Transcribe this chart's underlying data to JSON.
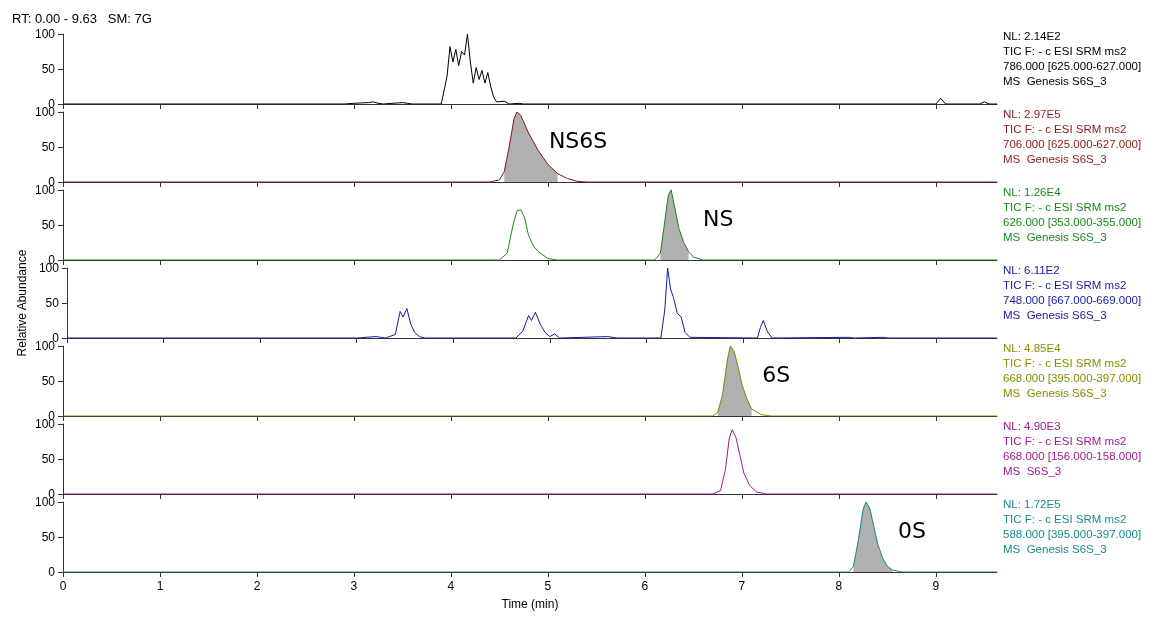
{
  "chart_data": [
    {
      "type": "line",
      "title": "RT: 0.00 - 9.63   SM: 7G",
      "xlim": [
        0,
        9.63
      ],
      "xticks": [
        0,
        1,
        2,
        3,
        4,
        5,
        6,
        7,
        8,
        9
      ],
      "ylim": [
        0,
        100
      ],
      "yticks": [
        0,
        50,
        100
      ],
      "tick_labels": "y",
      "grid": false,
      "annotations": [
        "NL: 2.14E2",
        "TIC F: - c ESI SRM ms2",
        "786.000 [625.000-627.000]",
        "MS  Genesis S6S_3"
      ],
      "series": [
        {
          "color": "#000000",
          "x": [
            0,
            2.9,
            3.0,
            3.15,
            3.2,
            3.25,
            3.3,
            3.5,
            3.55,
            3.6,
            3.9,
            3.96,
            3.99,
            4.02,
            4.05,
            4.08,
            4.11,
            4.14,
            4.17,
            4.2,
            4.23,
            4.26,
            4.29,
            4.32,
            4.35,
            4.38,
            4.41,
            4.44,
            4.47,
            4.55,
            4.6,
            4.7,
            4.75,
            9.0,
            9.05,
            9.1,
            9.45,
            9.5,
            9.55,
            9.63
          ],
          "values": [
            0,
            0,
            1,
            2,
            3,
            1,
            0,
            2,
            1,
            0,
            0,
            40,
            82,
            60,
            78,
            55,
            75,
            70,
            100,
            60,
            30,
            52,
            35,
            48,
            30,
            45,
            25,
            10,
            3,
            4,
            0,
            1,
            0,
            0,
            8,
            0,
            0,
            3,
            0,
            0
          ]
        }
      ]
    },
    {
      "type": "line",
      "xlim": [
        0,
        9.63
      ],
      "xticks": [
        0,
        1,
        2,
        3,
        4,
        5,
        6,
        7,
        8,
        9
      ],
      "ylim": [
        0,
        100
      ],
      "yticks": [
        0,
        50,
        100
      ],
      "tick_labels": "y",
      "grid": false,
      "annotations": [
        "NL: 2.97E5",
        "TIC F: - c ESI SRM ms2",
        "706.000 [625.000-627.000]",
        "MS  Genesis S6S_3",
        {
          "text": "NS6S",
          "x": 4.68,
          "y": 100
        }
      ],
      "series": [
        {
          "type": "area",
          "color": "#b0b0b0",
          "x": [
            4.55,
            4.6,
            4.65,
            4.68,
            4.72,
            4.8,
            4.9,
            5.0,
            5.1
          ],
          "values": [
            15,
            50,
            90,
            100,
            95,
            70,
            45,
            25,
            12
          ]
        },
        {
          "color": "#8b1a1a",
          "x": [
            0,
            4.4,
            4.5,
            4.55,
            4.6,
            4.65,
            4.68,
            4.72,
            4.8,
            4.9,
            5.0,
            5.1,
            5.2,
            5.3,
            5.4,
            9.63
          ],
          "values": [
            0,
            0,
            3,
            15,
            50,
            90,
            100,
            95,
            70,
            45,
            25,
            12,
            5,
            1,
            0,
            0
          ]
        }
      ]
    },
    {
      "type": "line",
      "xlim": [
        0,
        9.63
      ],
      "xticks": [
        0,
        1,
        2,
        3,
        4,
        5,
        6,
        7,
        8,
        9
      ],
      "ylim": [
        0,
        100
      ],
      "yticks": [
        0,
        50,
        100
      ],
      "tick_labels": "y",
      "grid": false,
      "annotations": [
        "NL: 1.26E4",
        "TIC F: - c ESI SRM ms2",
        "626.000 [353.000-355.000]",
        "MS  Genesis S6S_3",
        {
          "text": "NS",
          "x": 6.27,
          "y": 100
        }
      ],
      "series": [
        {
          "type": "area",
          "color": "#b0b0b0",
          "x": [
            6.16,
            6.2,
            6.24,
            6.27,
            6.3,
            6.35,
            6.4,
            6.45
          ],
          "values": [
            10,
            50,
            92,
            100,
            80,
            45,
            25,
            12
          ]
        },
        {
          "color": "#1a8a1a",
          "x": [
            0,
            4.5,
            4.58,
            4.64,
            4.68,
            4.72,
            4.76,
            4.8,
            4.85,
            4.9,
            5.0,
            5.1,
            6.1,
            6.16,
            6.2,
            6.24,
            6.27,
            6.3,
            6.35,
            6.4,
            6.45,
            6.5,
            6.6,
            9.63
          ],
          "values": [
            0,
            0,
            10,
            50,
            70,
            72,
            60,
            35,
            20,
            12,
            2,
            0,
            0,
            10,
            50,
            92,
            100,
            80,
            45,
            25,
            12,
            4,
            0,
            0
          ]
        }
      ]
    },
    {
      "type": "line",
      "ylabel": "Relative Abundance",
      "xlim": [
        0,
        9.63
      ],
      "xticks": [
        0,
        1,
        2,
        3,
        4,
        5,
        6,
        7,
        8,
        9
      ],
      "ylim": [
        0,
        100
      ],
      "yticks": [
        0,
        50,
        100
      ],
      "tick_labels": "y",
      "grid": false,
      "annotations": [
        "NL: 6.11E2",
        "TIC F: - c ESI SRM ms2",
        "748.000 [667.000-669.000]",
        "MS  Genesis S6S_3"
      ],
      "series": [
        {
          "color": "#1a1aa0",
          "x": [
            0,
            3.0,
            3.2,
            3.3,
            3.4,
            3.45,
            3.48,
            3.52,
            3.56,
            3.6,
            3.65,
            3.7,
            4.65,
            4.72,
            4.78,
            4.81,
            4.85,
            4.9,
            4.95,
            5.0,
            5.05,
            5.1,
            5.6,
            5.7,
            6.15,
            6.19,
            6.22,
            6.25,
            6.28,
            6.32,
            6.36,
            6.4,
            6.45,
            7.15,
            7.18,
            7.21,
            7.25,
            7.3,
            8.1,
            8.15,
            8.45,
            8.5,
            9.63
          ],
          "values": [
            0,
            0,
            2,
            0,
            5,
            38,
            30,
            42,
            20,
            8,
            2,
            0,
            0,
            10,
            32,
            25,
            37,
            20,
            8,
            2,
            6,
            0,
            2,
            0,
            0,
            40,
            100,
            70,
            58,
            35,
            30,
            8,
            1,
            0,
            15,
            25,
            10,
            0,
            1,
            0,
            1,
            0,
            0
          ]
        }
      ]
    },
    {
      "type": "line",
      "xlim": [
        0,
        9.63
      ],
      "xticks": [
        0,
        1,
        2,
        3,
        4,
        5,
        6,
        7,
        8,
        9
      ],
      "ylim": [
        0,
        100
      ],
      "yticks": [
        0,
        50,
        100
      ],
      "tick_labels": "y",
      "grid": false,
      "annotations": [
        "NL: 4.85E4",
        "TIC F: - c ESI SRM ms2",
        "668.000 [395.000-397.000]",
        "MS  Genesis S6S_3",
        {
          "text": "6S",
          "x": 6.88,
          "y": 100
        }
      ],
      "series": [
        {
          "type": "area",
          "color": "#b0b0b0",
          "x": [
            6.75,
            6.8,
            6.85,
            6.88,
            6.92,
            6.96,
            7.0,
            7.05,
            7.1
          ],
          "values": [
            5,
            30,
            80,
            100,
            92,
            70,
            45,
            25,
            10
          ]
        },
        {
          "color": "#8a8a00",
          "x": [
            0,
            6.7,
            6.75,
            6.8,
            6.85,
            6.88,
            6.92,
            6.96,
            7.0,
            7.05,
            7.1,
            7.2,
            7.3,
            9.63
          ],
          "values": [
            0,
            0,
            5,
            30,
            80,
            100,
            92,
            70,
            45,
            25,
            10,
            2,
            0,
            0
          ]
        }
      ]
    },
    {
      "type": "line",
      "xlim": [
        0,
        9.63
      ],
      "xticks": [
        0,
        1,
        2,
        3,
        4,
        5,
        6,
        7,
        8,
        9
      ],
      "ylim": [
        0,
        100
      ],
      "yticks": [
        0,
        50,
        100
      ],
      "tick_labels": "y",
      "grid": false,
      "annotations": [
        "NL: 4.90E3",
        "TIC F: - c ESI SRM ms2",
        "668.000 [156.000-158.000]",
        "MS  S6S_3"
      ],
      "series": [
        {
          "color": "#a01a8a",
          "x": [
            0,
            6.7,
            6.78,
            6.83,
            6.87,
            6.9,
            6.94,
            6.98,
            7.02,
            7.08,
            7.15,
            7.25,
            9.63
          ],
          "values": [
            0,
            0,
            5,
            35,
            80,
            92,
            80,
            55,
            30,
            12,
            3,
            0,
            0
          ]
        }
      ]
    },
    {
      "type": "line",
      "xlabel": "Time (min)",
      "xlim": [
        0,
        9.63
      ],
      "xticks": [
        0,
        1,
        2,
        3,
        4,
        5,
        6,
        7,
        8,
        9
      ],
      "ylim": [
        0,
        100
      ],
      "yticks": [
        0,
        50,
        100
      ],
      "grid": false,
      "annotations": [
        "NL: 1.72E5",
        "TIC F: - c ESI SRM ms2",
        "588.000 [395.000-397.000]",
        "MS  Genesis S6S_3",
        {
          "text": "0S",
          "x": 8.28,
          "y": 100
        }
      ],
      "series": [
        {
          "type": "area",
          "color": "#b0b0b0",
          "x": [
            8.15,
            8.2,
            8.25,
            8.28,
            8.32,
            8.36,
            8.4,
            8.45,
            8.5,
            8.55
          ],
          "values": [
            8,
            45,
            90,
            100,
            90,
            65,
            40,
            20,
            8,
            3
          ]
        },
        {
          "color": "#1a8a8a",
          "x": [
            0,
            8.1,
            8.15,
            8.2,
            8.25,
            8.28,
            8.32,
            8.36,
            8.4,
            8.45,
            8.5,
            8.55,
            8.65,
            9.63
          ],
          "values": [
            0,
            0,
            8,
            45,
            90,
            100,
            90,
            65,
            40,
            20,
            8,
            3,
            0,
            0
          ]
        }
      ]
    }
  ]
}
